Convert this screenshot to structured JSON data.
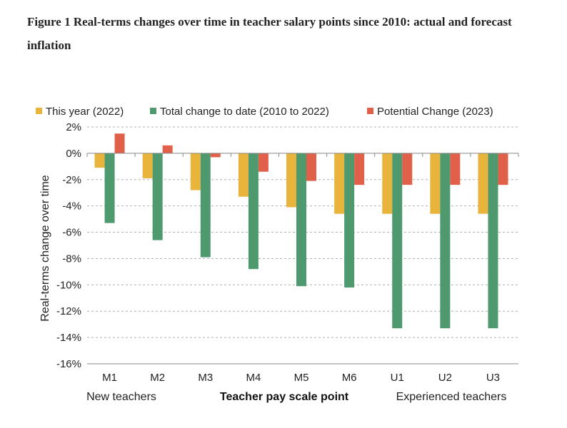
{
  "figure_title": "Figure 1 Real-terms changes over time in teacher salary points since 2010: actual and forecast inflation",
  "colors": {
    "this_year": "#e8b43c",
    "total_change": "#4e9a6e",
    "potential_change": "#e0604a",
    "grid": "#b0b0b0",
    "axis": "#888888"
  },
  "chart_data": {
    "type": "bar",
    "categories": [
      "M1",
      "M2",
      "M3",
      "M4",
      "M5",
      "M6",
      "U1",
      "U2",
      "U3"
    ],
    "series": [
      {
        "name": "This year (2022)",
        "color_key": "this_year",
        "values": [
          -1.1,
          -1.9,
          -2.8,
          -3.3,
          -4.1,
          -4.6,
          -4.6,
          -4.6,
          -4.6
        ]
      },
      {
        "name": "Total change to date (2010 to 2022)",
        "color_key": "total_change",
        "values": [
          -5.3,
          -6.6,
          -7.9,
          -8.8,
          -10.1,
          -10.2,
          -13.3,
          -13.3,
          -13.3
        ]
      },
      {
        "name": "Potential Change (2023)",
        "color_key": "potential_change",
        "values": [
          1.5,
          0.6,
          -0.3,
          -1.4,
          -2.1,
          -2.4,
          -2.4,
          -2.4,
          -2.4
        ]
      }
    ],
    "ylim": [
      -16,
      2
    ],
    "yticks": [
      2,
      0,
      -2,
      -4,
      -6,
      -8,
      -10,
      -12,
      -14,
      -16
    ],
    "ytick_labels": [
      "2%",
      "0%",
      "-2%",
      "-4%",
      "-6%",
      "-8%",
      "-10%",
      "-12%",
      "-14%",
      "-16%"
    ],
    "ylabel": "Real-terms change over time",
    "xlabel": "Teacher pay scale point",
    "group_labels": [
      "New teachers",
      "Experienced teachers"
    ],
    "grid": "horizontal dashed",
    "legend_position": "top"
  }
}
